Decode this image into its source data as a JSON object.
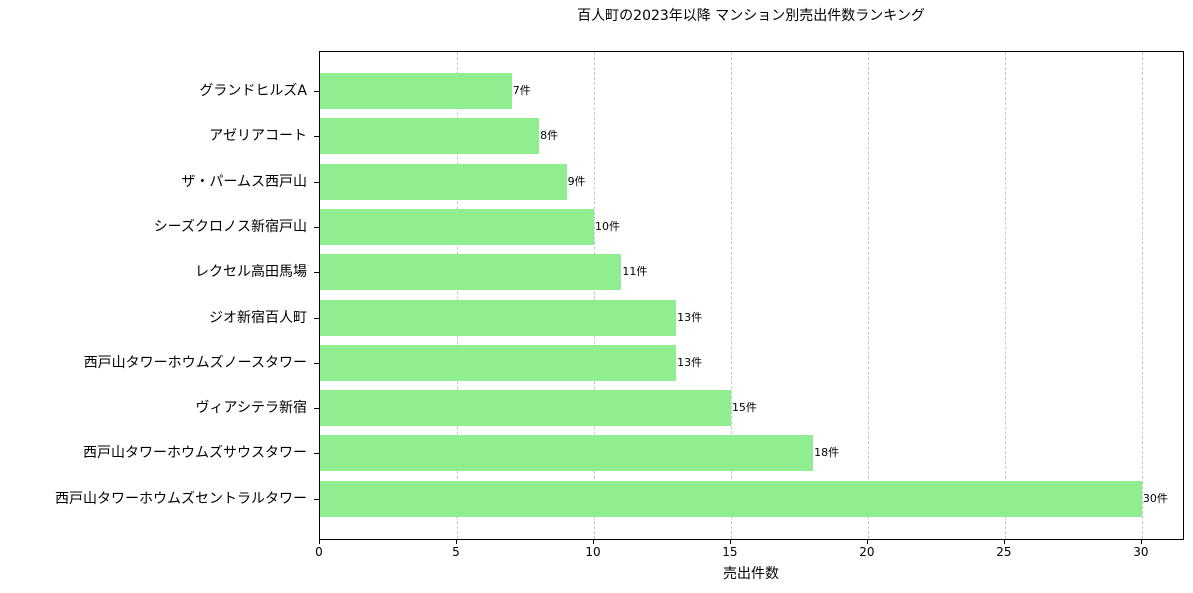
{
  "chart_data": {
    "type": "bar",
    "orientation": "horizontal",
    "title": "百人町の2023年以降 マンション別売出件数ランキング",
    "xlabel": "売出件数",
    "ylabel": "",
    "xlim": [
      0,
      31.5
    ],
    "xticks": [
      0,
      5,
      10,
      15,
      20,
      25,
      30
    ],
    "grid": {
      "x": true,
      "y": false,
      "style": "dashed"
    },
    "bar_color": "#90ee90",
    "categories": [
      "グランドヒルズA",
      "アゼリアコート",
      "ザ・パームス西戸山",
      "シーズクロノス新宿戸山",
      "レクセル高田馬場",
      "ジオ新宿百人町",
      "西戸山タワーホウムズノースタワー",
      "ヴィアシテラ新宿",
      "西戸山タワーホウムズサウスタワー",
      "西戸山タワーホウムズセントラルタワー"
    ],
    "values": [
      7,
      8,
      9,
      10,
      11,
      13,
      13,
      15,
      18,
      30
    ],
    "data_labels": [
      "7件",
      "8件",
      "9件",
      "10件",
      "11件",
      "13件",
      "13件",
      "15件",
      "18件",
      "30件"
    ]
  }
}
